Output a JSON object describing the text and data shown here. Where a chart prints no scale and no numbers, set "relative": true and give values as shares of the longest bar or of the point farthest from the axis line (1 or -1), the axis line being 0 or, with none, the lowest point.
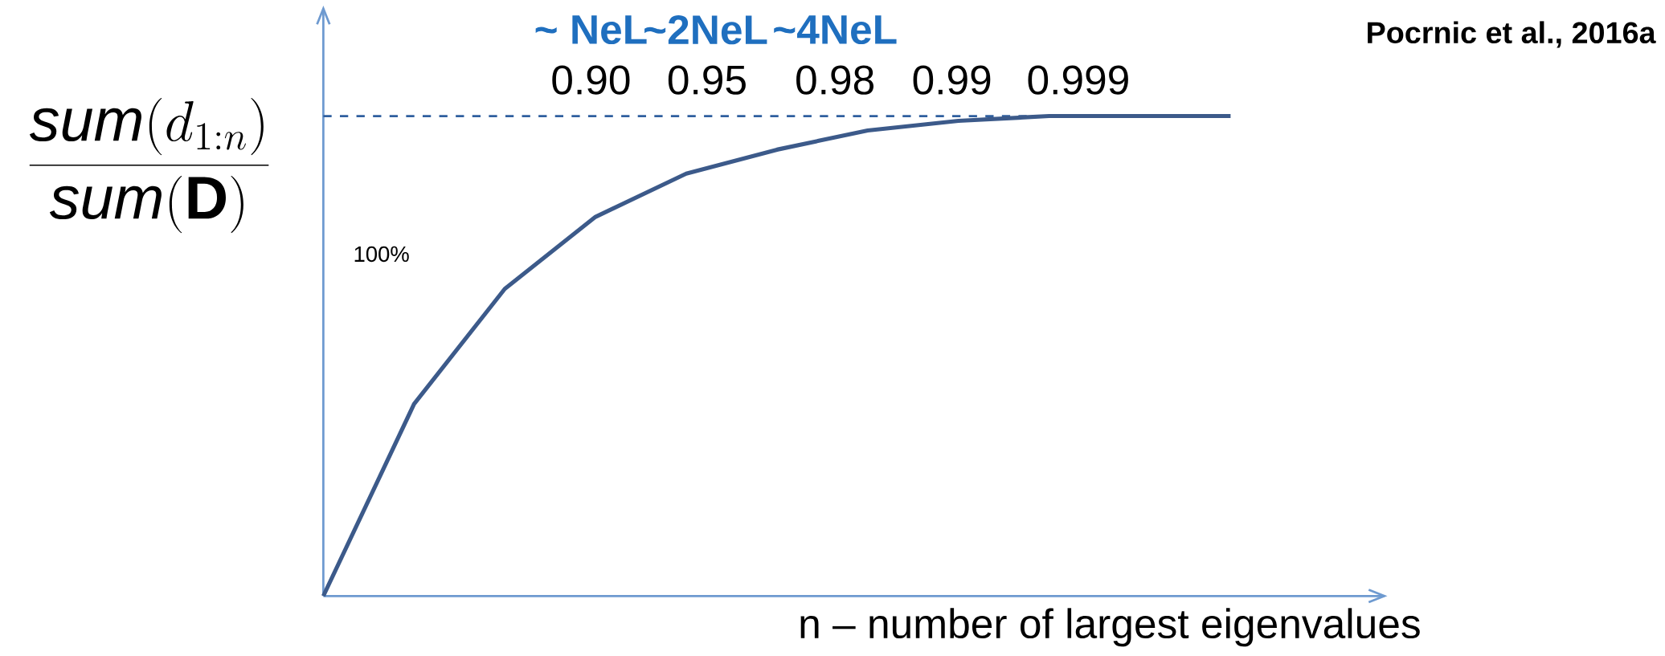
{
  "chart_data": {
    "type": "line",
    "relative": true,
    "marker": "none",
    "line_style": "solid",
    "color": "#3c5a8a",
    "categories": [
      null,
      null,
      null,
      null,
      null,
      null,
      null,
      null,
      null,
      null,
      null
    ],
    "values": [
      0,
      0.4,
      0.64,
      0.79,
      0.88,
      0.93,
      0.97,
      0.99,
      1,
      1,
      1
    ],
    "xlabel": "n – number of largest eigenvalues",
    "ylabel": "\\frac{\\mathit{sum}(d_{1:n})}{\\mathit{sum}(\\mathbf{D})}",
    "ref_lines": [
      {
        "axis": "y",
        "value": 1,
        "color": "#2f5f9e",
        "line_style": "dashed"
      }
    ],
    "annotations": [
      "~ NeL",
      "~2NeL",
      "~4NeL",
      "0.90",
      "0.95",
      "0.98",
      "0.99",
      "0.999",
      "100%",
      "Pocrnic et al., 2016a"
    ]
  }
}
